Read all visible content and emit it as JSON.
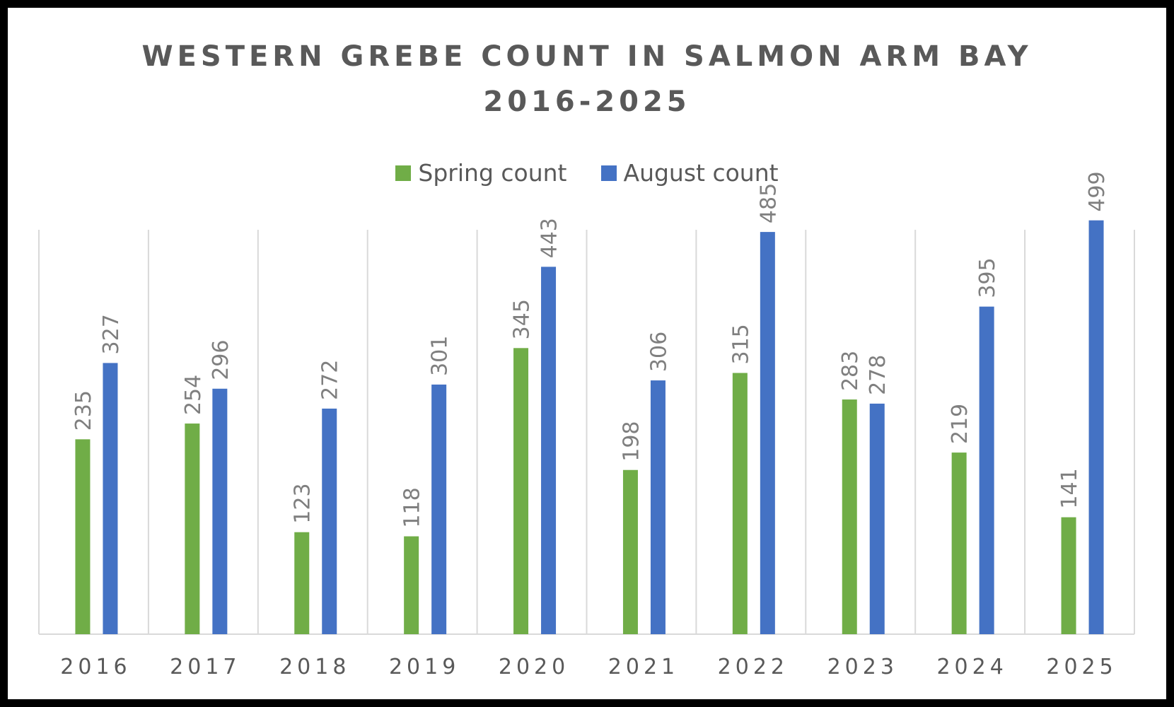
{
  "chart_data": {
    "type": "bar",
    "title_lines": [
      "WESTERN GREBE COUNT IN SALMON ARM BAY",
      "2016-2025"
    ],
    "categories": [
      "2016",
      "2017",
      "2018",
      "2019",
      "2020",
      "2021",
      "2022",
      "2023",
      "2024",
      "2025"
    ],
    "series": [
      {
        "name": "Spring count",
        "color": "#70ad47",
        "values": [
          235,
          254,
          123,
          118,
          345,
          198,
          315,
          283,
          219,
          141
        ]
      },
      {
        "name": "August count",
        "color": "#4472c4",
        "values": [
          327,
          296,
          272,
          301,
          443,
          306,
          485,
          278,
          395,
          499
        ]
      }
    ],
    "ylim": [
      0,
      600
    ],
    "grid": "vertical",
    "legend_position": "top",
    "data_labels": "rotated"
  }
}
